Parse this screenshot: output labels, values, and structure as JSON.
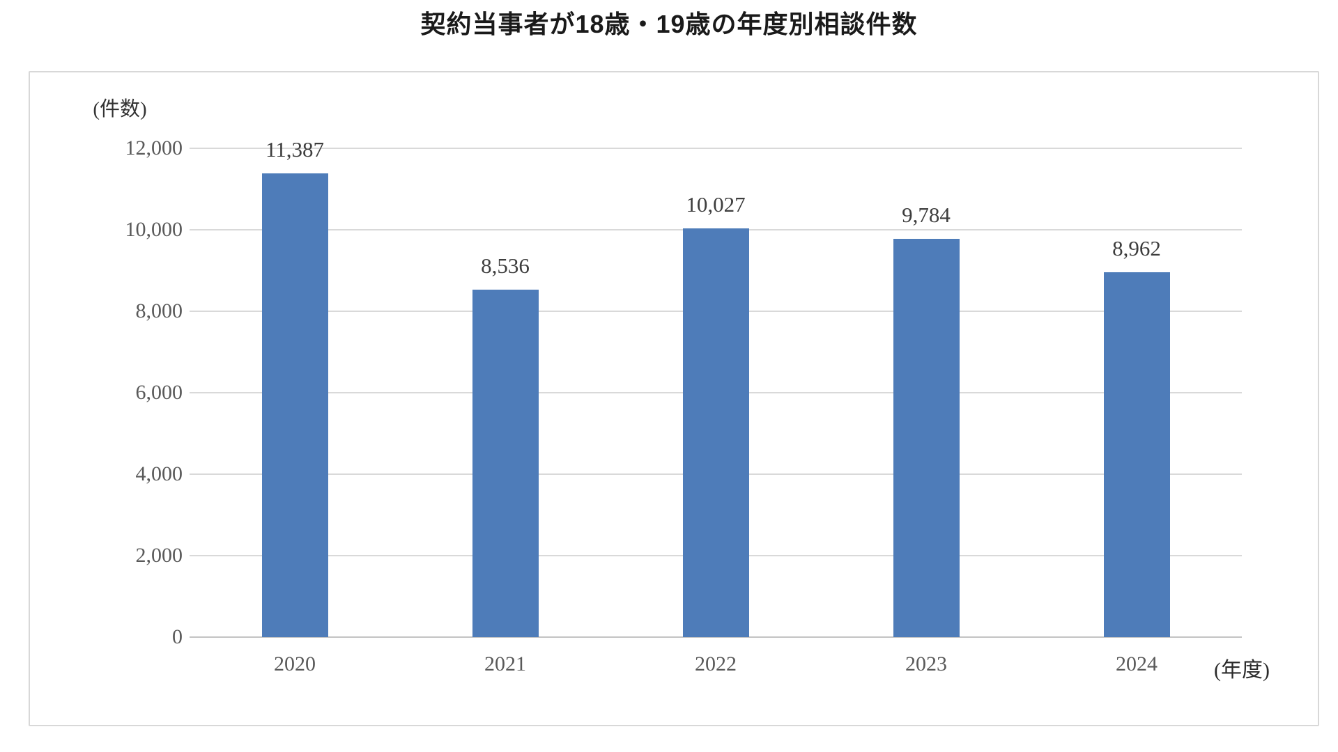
{
  "title": "契約当事者が18歳・19歳の年度別相談件数",
  "chart_data": {
    "type": "bar",
    "title": "契約当事者が18歳・19歳の年度別相談件数",
    "categories": [
      "2020",
      "2021",
      "2022",
      "2023",
      "2024"
    ],
    "values": [
      11387,
      8536,
      10027,
      9784,
      8962
    ],
    "value_labels": [
      "11,387",
      "8,536",
      "10,027",
      "9,784",
      "8,962"
    ],
    "xlabel": "(年度)",
    "ylabel": "(件数)",
    "ylim": [
      0,
      12000
    ],
    "ytick_interval": 2000,
    "yticks": [
      {
        "label": "12,000",
        "value": 12000
      },
      {
        "label": "10,000",
        "value": 10000
      },
      {
        "label": "8,000",
        "value": 8000
      },
      {
        "label": "6,000",
        "value": 6000
      },
      {
        "label": "4,000",
        "value": 4000
      },
      {
        "label": "2,000",
        "value": 2000
      },
      {
        "label": "0",
        "value": 0
      }
    ],
    "grid": true,
    "legend": "none",
    "colors": {
      "bar": "#4E7CB9",
      "gridline": "#D9D9D9",
      "axis_line": "#C4C4C4",
      "tick_label": "#595959",
      "value_label": "#3D3D3D",
      "title": "#1A1A1A",
      "frame_border": "#D8D8D8",
      "background": "#FFFFFF"
    }
  }
}
